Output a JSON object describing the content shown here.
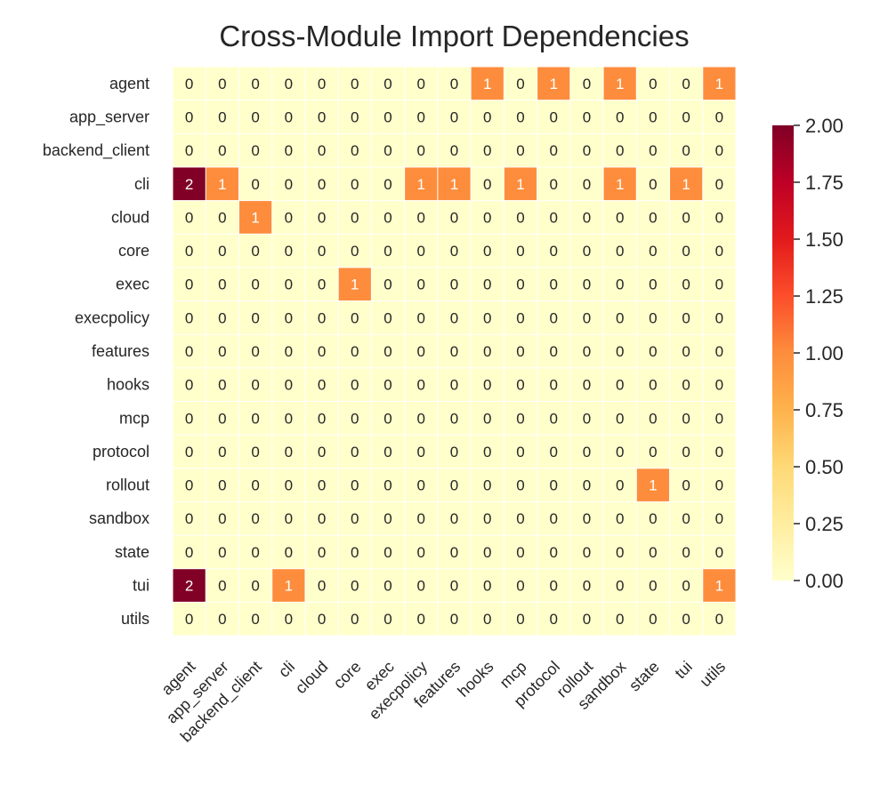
{
  "chart_data": {
    "type": "heatmap",
    "title": "Cross-Module Import Dependencies",
    "xlabel": "",
    "ylabel": "",
    "rows": [
      "agent",
      "app_server",
      "backend_client",
      "cli",
      "cloud",
      "core",
      "exec",
      "execpolicy",
      "features",
      "hooks",
      "mcp",
      "protocol",
      "rollout",
      "sandbox",
      "state",
      "tui",
      "utils"
    ],
    "columns": [
      "agent",
      "app_server",
      "backend_client",
      "cli",
      "cloud",
      "core",
      "exec",
      "execpolicy",
      "features",
      "hooks",
      "mcp",
      "protocol",
      "rollout",
      "sandbox",
      "state",
      "tui",
      "utils"
    ],
    "values": [
      [
        0,
        0,
        0,
        0,
        0,
        0,
        0,
        0,
        0,
        1,
        0,
        1,
        0,
        1,
        0,
        0,
        1
      ],
      [
        0,
        0,
        0,
        0,
        0,
        0,
        0,
        0,
        0,
        0,
        0,
        0,
        0,
        0,
        0,
        0,
        0
      ],
      [
        0,
        0,
        0,
        0,
        0,
        0,
        0,
        0,
        0,
        0,
        0,
        0,
        0,
        0,
        0,
        0,
        0
      ],
      [
        2,
        1,
        0,
        0,
        0,
        0,
        0,
        1,
        1,
        0,
        1,
        0,
        0,
        1,
        0,
        1,
        0
      ],
      [
        0,
        0,
        1,
        0,
        0,
        0,
        0,
        0,
        0,
        0,
        0,
        0,
        0,
        0,
        0,
        0,
        0
      ],
      [
        0,
        0,
        0,
        0,
        0,
        0,
        0,
        0,
        0,
        0,
        0,
        0,
        0,
        0,
        0,
        0,
        0
      ],
      [
        0,
        0,
        0,
        0,
        0,
        1,
        0,
        0,
        0,
        0,
        0,
        0,
        0,
        0,
        0,
        0,
        0
      ],
      [
        0,
        0,
        0,
        0,
        0,
        0,
        0,
        0,
        0,
        0,
        0,
        0,
        0,
        0,
        0,
        0,
        0
      ],
      [
        0,
        0,
        0,
        0,
        0,
        0,
        0,
        0,
        0,
        0,
        0,
        0,
        0,
        0,
        0,
        0,
        0
      ],
      [
        0,
        0,
        0,
        0,
        0,
        0,
        0,
        0,
        0,
        0,
        0,
        0,
        0,
        0,
        0,
        0,
        0
      ],
      [
        0,
        0,
        0,
        0,
        0,
        0,
        0,
        0,
        0,
        0,
        0,
        0,
        0,
        0,
        0,
        0,
        0
      ],
      [
        0,
        0,
        0,
        0,
        0,
        0,
        0,
        0,
        0,
        0,
        0,
        0,
        0,
        0,
        0,
        0,
        0
      ],
      [
        0,
        0,
        0,
        0,
        0,
        0,
        0,
        0,
        0,
        0,
        0,
        0,
        0,
        0,
        1,
        0,
        0
      ],
      [
        0,
        0,
        0,
        0,
        0,
        0,
        0,
        0,
        0,
        0,
        0,
        0,
        0,
        0,
        0,
        0,
        0
      ],
      [
        0,
        0,
        0,
        0,
        0,
        0,
        0,
        0,
        0,
        0,
        0,
        0,
        0,
        0,
        0,
        0,
        0
      ],
      [
        2,
        0,
        0,
        1,
        0,
        0,
        0,
        0,
        0,
        0,
        0,
        0,
        0,
        0,
        0,
        0,
        1
      ],
      [
        0,
        0,
        0,
        0,
        0,
        0,
        0,
        0,
        0,
        0,
        0,
        0,
        0,
        0,
        0,
        0,
        0
      ]
    ],
    "colorbar": {
      "min": 0,
      "max": 2,
      "ticks": [
        "0.00",
        "0.25",
        "0.50",
        "0.75",
        "1.00",
        "1.25",
        "1.50",
        "1.75",
        "2.00"
      ],
      "colormap": "YlOrRd"
    },
    "colors": {
      "zero": "#ffffcc",
      "one": "#fd8d3c",
      "two": "#800026",
      "text_dark": "#262626",
      "text_light": "#ffffff",
      "grid": "#ffffff"
    }
  }
}
